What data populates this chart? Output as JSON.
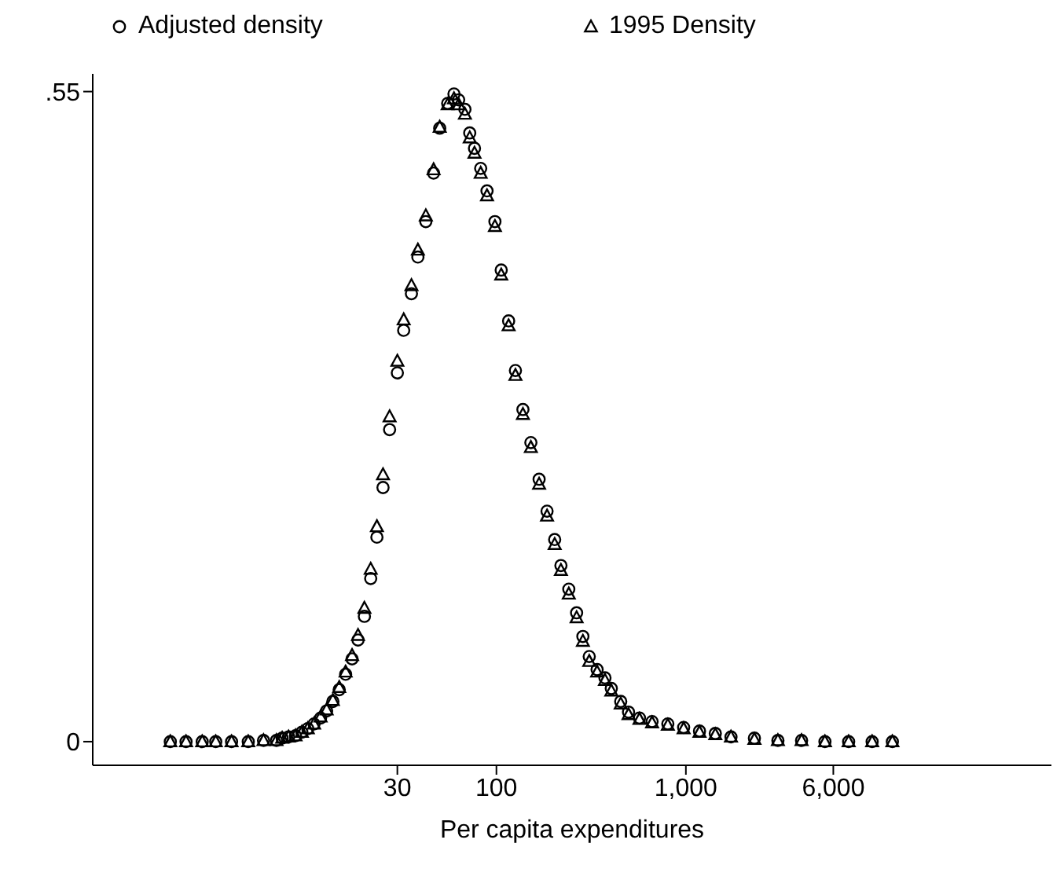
{
  "chart_data": {
    "type": "scatter",
    "xlabel": "Per capita expenditures",
    "log": "x",
    "legend": "top",
    "grid": false,
    "xlim": [
      0.74,
      85000
    ],
    "xticks": [
      30,
      100,
      {
        "value": 1000,
        "label": "1,000"
      },
      {
        "value": 6000,
        "label": "6,000"
      }
    ],
    "ylim": [
      -0.02,
      0.565
    ],
    "yticks": [
      0,
      {
        "value": 0.55,
        "label": ".55"
      }
    ],
    "x": [
      1.9,
      2.3,
      2.8,
      3.3,
      4.0,
      4.9,
      5.9,
      6.9,
      7.4,
      8.0,
      8.7,
      9.4,
      10.1,
      10.9,
      11.8,
      12.7,
      13.7,
      14.8,
      16.0,
      17.3,
      18.6,
      20.1,
      21.7,
      23.4,
      25.2,
      27.3,
      30.0,
      32.4,
      35.6,
      38.5,
      42.4,
      46.6,
      50.2,
      55.3,
      59.7,
      63.2,
      68.2,
      72.3,
      76.6,
      82.6,
      89.2,
      98.2,
      106,
      116,
      126,
      138,
      152,
      168,
      185,
      203,
      219,
      241,
      265,
      286,
      309,
      340,
      374,
      404,
      453,
      498,
      569,
      663,
      803,
      973,
      1180,
      1430,
      1730,
      2300,
      3060,
      4080,
      5420,
      7230,
      9620,
      12300
    ],
    "series": [
      {
        "name": "Adjusted density",
        "color": "#000000",
        "marker": "circle",
        "values": [
          0,
          0,
          0,
          0,
          0,
          0,
          0.001,
          0.001,
          0.003,
          0.004,
          0.005,
          0.008,
          0.011,
          0.015,
          0.02,
          0.026,
          0.034,
          0.044,
          0.057,
          0.07,
          0.086,
          0.106,
          0.138,
          0.173,
          0.215,
          0.264,
          0.312,
          0.348,
          0.379,
          0.41,
          0.44,
          0.481,
          0.519,
          0.54,
          0.548,
          0.543,
          0.535,
          0.515,
          0.502,
          0.485,
          0.466,
          0.44,
          0.399,
          0.356,
          0.314,
          0.281,
          0.253,
          0.222,
          0.195,
          0.171,
          0.149,
          0.129,
          0.109,
          0.089,
          0.072,
          0.061,
          0.054,
          0.045,
          0.034,
          0.025,
          0.02,
          0.017,
          0.015,
          0.012,
          0.009,
          0.007,
          0.004,
          0.003,
          0.001,
          0.001,
          0,
          0,
          0,
          0
        ]
      },
      {
        "name": "1995 Density",
        "color": "#000000",
        "marker": "triangle",
        "values": [
          0,
          0,
          0,
          0,
          0,
          0,
          0.001,
          0.001,
          0.003,
          0.004,
          0.005,
          0.008,
          0.011,
          0.015,
          0.021,
          0.027,
          0.035,
          0.046,
          0.059,
          0.073,
          0.09,
          0.113,
          0.146,
          0.182,
          0.226,
          0.275,
          0.322,
          0.357,
          0.386,
          0.416,
          0.445,
          0.484,
          0.52,
          0.539,
          0.544,
          0.539,
          0.531,
          0.511,
          0.498,
          0.481,
          0.462,
          0.436,
          0.395,
          0.352,
          0.31,
          0.277,
          0.249,
          0.218,
          0.191,
          0.167,
          0.145,
          0.125,
          0.105,
          0.085,
          0.068,
          0.059,
          0.052,
          0.043,
          0.032,
          0.023,
          0.019,
          0.016,
          0.014,
          0.011,
          0.008,
          0.006,
          0.004,
          0.002,
          0.001,
          0.001,
          0,
          0,
          0,
          0
        ]
      }
    ]
  }
}
